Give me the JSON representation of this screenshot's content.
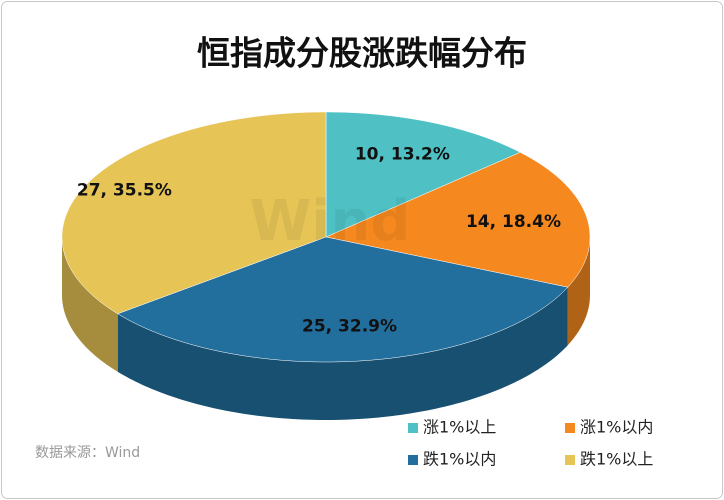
{
  "chart_data": {
    "type": "pie",
    "title": "恒指成分股涨跌幅分布",
    "categories": [
      "涨1%以上",
      "涨1%以内",
      "跌1%以内",
      "跌1%以上"
    ],
    "values": [
      10,
      14,
      25,
      27
    ],
    "value_labels": [
      "10, 13.2%",
      "14, 18.4%",
      "25, 32.9%",
      "27, 35.5%"
    ],
    "colors": [
      "#4fc1c4",
      "#f5891f",
      "#226f9e",
      "#e6c456"
    ],
    "watermark": "Wind",
    "source": "数据来源：Wind"
  }
}
